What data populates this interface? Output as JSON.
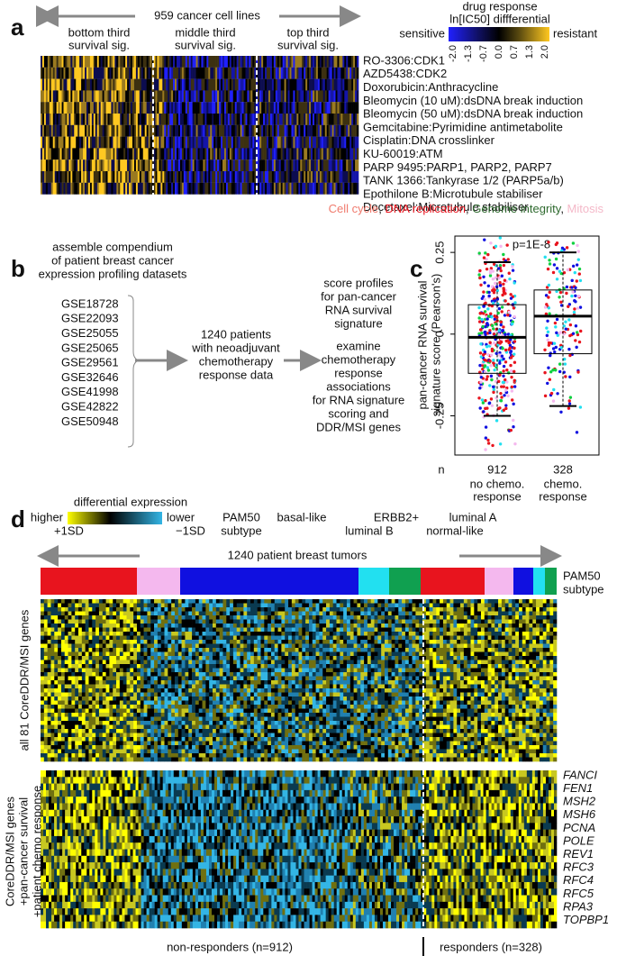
{
  "panel_a": {
    "label": "a",
    "arrow_label": "959 cancer cell lines",
    "groups": [
      [
        "bottom third",
        "survival sig."
      ],
      [
        "middle third",
        "survival sig."
      ],
      [
        "top third",
        "survival sig."
      ]
    ],
    "legend": {
      "title": "drug response",
      "subtitle": "ln[IC50] diffferential",
      "low": "sensitive",
      "high": "resistant",
      "ticks": [
        "-2.0",
        "-1.3",
        "-0.7",
        "0.0",
        "0.7",
        "1.3",
        "2.0"
      ]
    },
    "drugs": [
      {
        "label": "RO-3306:CDK1",
        "color": "#f07b6e"
      },
      {
        "label": "AZD5438:CDK2",
        "color": "#f07b6e"
      },
      {
        "label": "Doxorubicin:Anthracycline",
        "color": "#e8141e"
      },
      {
        "label": "Bleomycin (10 uM):dsDNA break induction",
        "color": "#e8141e"
      },
      {
        "label": "Bleomycin (50 uM):dsDNA break induction",
        "color": "#e8141e"
      },
      {
        "label": "Gemcitabine:Pyrimidine antimetabolite",
        "color": "#e8141e"
      },
      {
        "label": "Cisplatin:DNA crosslinker",
        "color": "#e8141e"
      },
      {
        "label": "KU-60019:ATM",
        "color": "#2f6a2f"
      },
      {
        "label": "PARP 9495:PARP1, PARP2, PARP7",
        "color": "#2f6a2f"
      },
      {
        "label": "TANK 1366:Tankyrase 1/2 (PARP5a/b)",
        "color": "#2f6a2f"
      },
      {
        "label": "Epothilone B:Microtubule stabiliser",
        "color": "#f4b8c8"
      },
      {
        "label": "Docetaxel:Microtubule stabiliser",
        "color": "#f4b8c8"
      }
    ],
    "separator": ", ",
    "categories": [
      {
        "label": "Cell cycle",
        "color": "#f07b6e"
      },
      {
        "label": "DNA replication",
        "color": "#e8141e"
      },
      {
        "label": "Genome integrity",
        "color": "#2f6a2f"
      },
      {
        "label": "Mitosis",
        "color": "#f4b8c8"
      }
    ]
  },
  "panel_b": {
    "label": "b",
    "intro": [
      "assemble compendium",
      "of patient breast cancer",
      "expression profiling datasets"
    ],
    "datasets": [
      "GSE18728",
      "GSE22093",
      "GSE25055",
      "GSE25065",
      "GSE29561",
      "GSE32646",
      "GSE41998",
      "GSE42822",
      "GSE50948"
    ],
    "middle": [
      "1240 patients",
      "with neoadjuvant",
      "chemotherapy",
      "response data"
    ],
    "score": [
      "score profiles",
      "for pan-cancer",
      "RNA survival",
      "signature"
    ],
    "examine": [
      "examine",
      "chemotherapy",
      "response",
      "associations",
      "for RNA signature",
      "scoring and",
      "DDR/MSI genes"
    ]
  },
  "panel_c": {
    "label": "c",
    "annotation": "p=1E-8",
    "ylabel": [
      "pan-cancer RNA survival",
      "signature score (Pearson's)"
    ],
    "n_label": "n",
    "ylim": [
      -0.37,
      0.3
    ],
    "yticks": [
      {
        "value": 0.25,
        "label": "0.25"
      },
      {
        "value": 0,
        "label": "0"
      },
      {
        "value": -0.25,
        "label": "-0.25"
      }
    ],
    "groups": [
      {
        "n": "912",
        "label": [
          "no chemo.",
          "response"
        ],
        "q1": -0.12,
        "median": -0.01,
        "q3": 0.09,
        "low": -0.25,
        "high": 0.22
      },
      {
        "n": "328",
        "label": [
          "chemo.",
          "response"
        ],
        "q1": -0.06,
        "median": 0.055,
        "q3": 0.135,
        "low": -0.22,
        "high": 0.25
      }
    ]
  },
  "panel_d": {
    "label": "d",
    "legend_title": "differential expression",
    "higher": "higher",
    "lower": "lower",
    "plus": "+1SD",
    "minus": "−1SD",
    "pam50": [
      "PAM50",
      "subtype"
    ],
    "subtypes": [
      {
        "label": "basal-like",
        "color": "#e8141e"
      },
      {
        "label": "ERBB2+",
        "color": "#f4b8ee"
      },
      {
        "label": "luminal A",
        "color": "#1010e0"
      },
      {
        "label": "luminal B",
        "color": "#22e0f0"
      },
      {
        "label": "normal-like",
        "color": "#10a050"
      }
    ],
    "arrow_label": "1240 patient breast tumors",
    "bar_label": [
      "PAM50",
      "subtype"
    ],
    "top_label": "all 81 CoreDDR/MSI genes",
    "bottom_label": [
      "CoreDDR/MSI genes",
      "+pan-cancer survival",
      "+patient chemo response"
    ],
    "genes": [
      "FANCI",
      "FEN1",
      "MSH2",
      "MSH6",
      "PCNA",
      "POLE",
      "REV1",
      "RFC3",
      "RFC4",
      "RFC5",
      "RPA3",
      "TOPBP1"
    ],
    "non_responders": "non-responders (n=912)",
    "responders": "responders (n=328)"
  }
}
